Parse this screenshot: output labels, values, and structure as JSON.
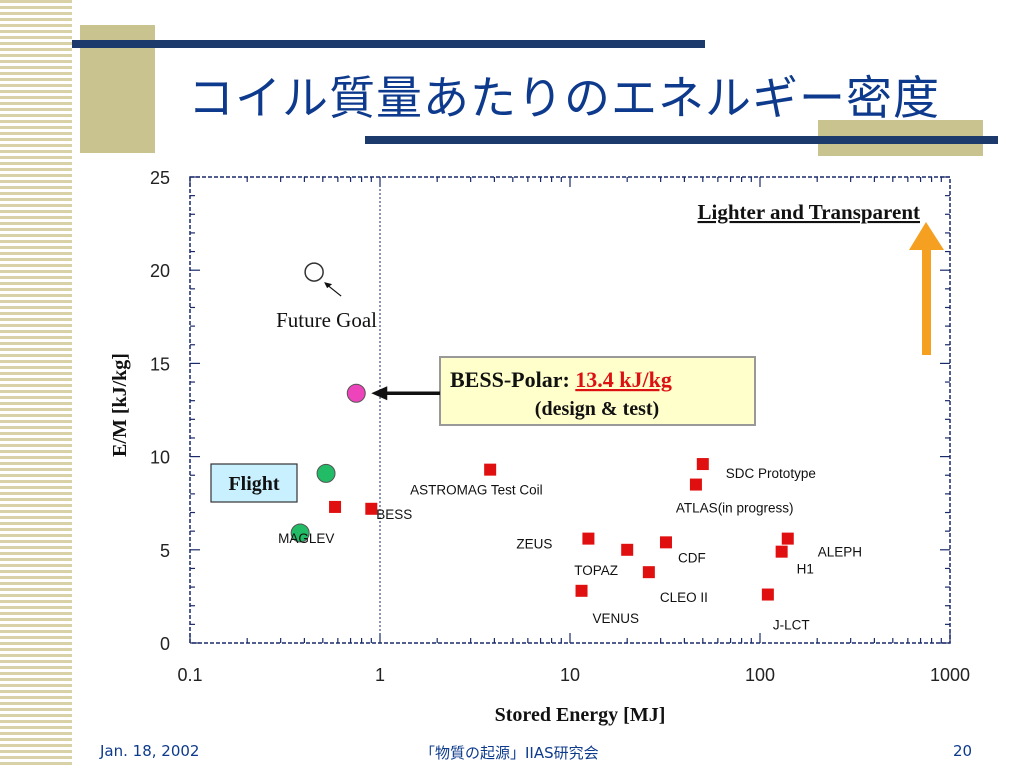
{
  "slide": {
    "title": "コイル質量あたりのエネルギー密度",
    "footer_date": "Jan. 18, 2002",
    "footer_center": "「物質の起源」IIAS研究会",
    "page_number": "20"
  },
  "colors": {
    "title": "#0d3a8c",
    "accent_line": "#1c3a6b",
    "deco_tan": "#c9c48f",
    "point_red": "#e01010",
    "point_green": "#22bb66",
    "point_magenta": "#ee44bb",
    "arrow_orange": "#f5a020",
    "callout_fill": "#ffffcc",
    "flight_fill": "#c8f0ff"
  },
  "chart_data": {
    "type": "scatter",
    "xlabel": "Stored Energy [MJ]",
    "ylabel": "E/M [kJ/kg]",
    "x_scale": "log",
    "xlim": [
      0.1,
      1000
    ],
    "ylim": [
      0,
      25
    ],
    "x_ticks": [
      "0.1",
      "1",
      "10",
      "100",
      "1000"
    ],
    "y_ticks": [
      "0",
      "5",
      "10",
      "15",
      "20",
      "25"
    ],
    "grid": false,
    "reference_line_x": 1,
    "points": [
      {
        "label": "MAGLEV",
        "x": 0.38,
        "y": 5.9,
        "marker": "circle",
        "color": "#22bb66"
      },
      {
        "label": "",
        "x": 0.52,
        "y": 9.1,
        "marker": "circle",
        "color": "#22bb66"
      },
      {
        "label": "",
        "x": 0.58,
        "y": 7.3,
        "marker": "square",
        "color": "#e01010"
      },
      {
        "label": "BESS",
        "x": 0.9,
        "y": 7.2,
        "marker": "square",
        "color": "#e01010"
      },
      {
        "label": "",
        "x": 0.75,
        "y": 13.4,
        "marker": "circle",
        "color": "#ee44bb"
      },
      {
        "label": "",
        "x": 0.45,
        "y": 19.9,
        "marker": "open-circle",
        "color": "#333333"
      },
      {
        "label": "ASTROMAG Test Coil",
        "x": 3.8,
        "y": 9.3,
        "marker": "square",
        "color": "#e01010"
      },
      {
        "label": "ZEUS",
        "x": 12.5,
        "y": 5.6,
        "marker": "square",
        "color": "#e01010"
      },
      {
        "label": "TOPAZ",
        "x": 20,
        "y": 5.0,
        "marker": "square",
        "color": "#e01010"
      },
      {
        "label": "VENUS",
        "x": 11.5,
        "y": 2.8,
        "marker": "square",
        "color": "#e01010"
      },
      {
        "label": "CDF",
        "x": 32,
        "y": 5.4,
        "marker": "square",
        "color": "#e01010"
      },
      {
        "label": "CLEO II",
        "x": 26,
        "y": 3.8,
        "marker": "square",
        "color": "#e01010"
      },
      {
        "label": "SDC Prototype",
        "x": 50,
        "y": 9.6,
        "marker": "square",
        "color": "#e01010"
      },
      {
        "label": "ATLAS(in progress)",
        "x": 46,
        "y": 8.5,
        "marker": "square",
        "color": "#e01010"
      },
      {
        "label": "ALEPH",
        "x": 140,
        "y": 5.6,
        "marker": "square",
        "color": "#e01010"
      },
      {
        "label": "H1",
        "x": 130,
        "y": 4.9,
        "marker": "square",
        "color": "#e01010"
      },
      {
        "label": "J-LCT",
        "x": 110,
        "y": 2.6,
        "marker": "square",
        "color": "#e01010"
      }
    ],
    "annotations": {
      "future_goal": "Future Goal",
      "bess_polar_prefix": "BESS-Polar: ",
      "bess_polar_value": "13.4 kJ/kg",
      "bess_polar_sub": "(design & test)",
      "flight": "Flight",
      "lighter": "Lighter and Transparent"
    }
  }
}
